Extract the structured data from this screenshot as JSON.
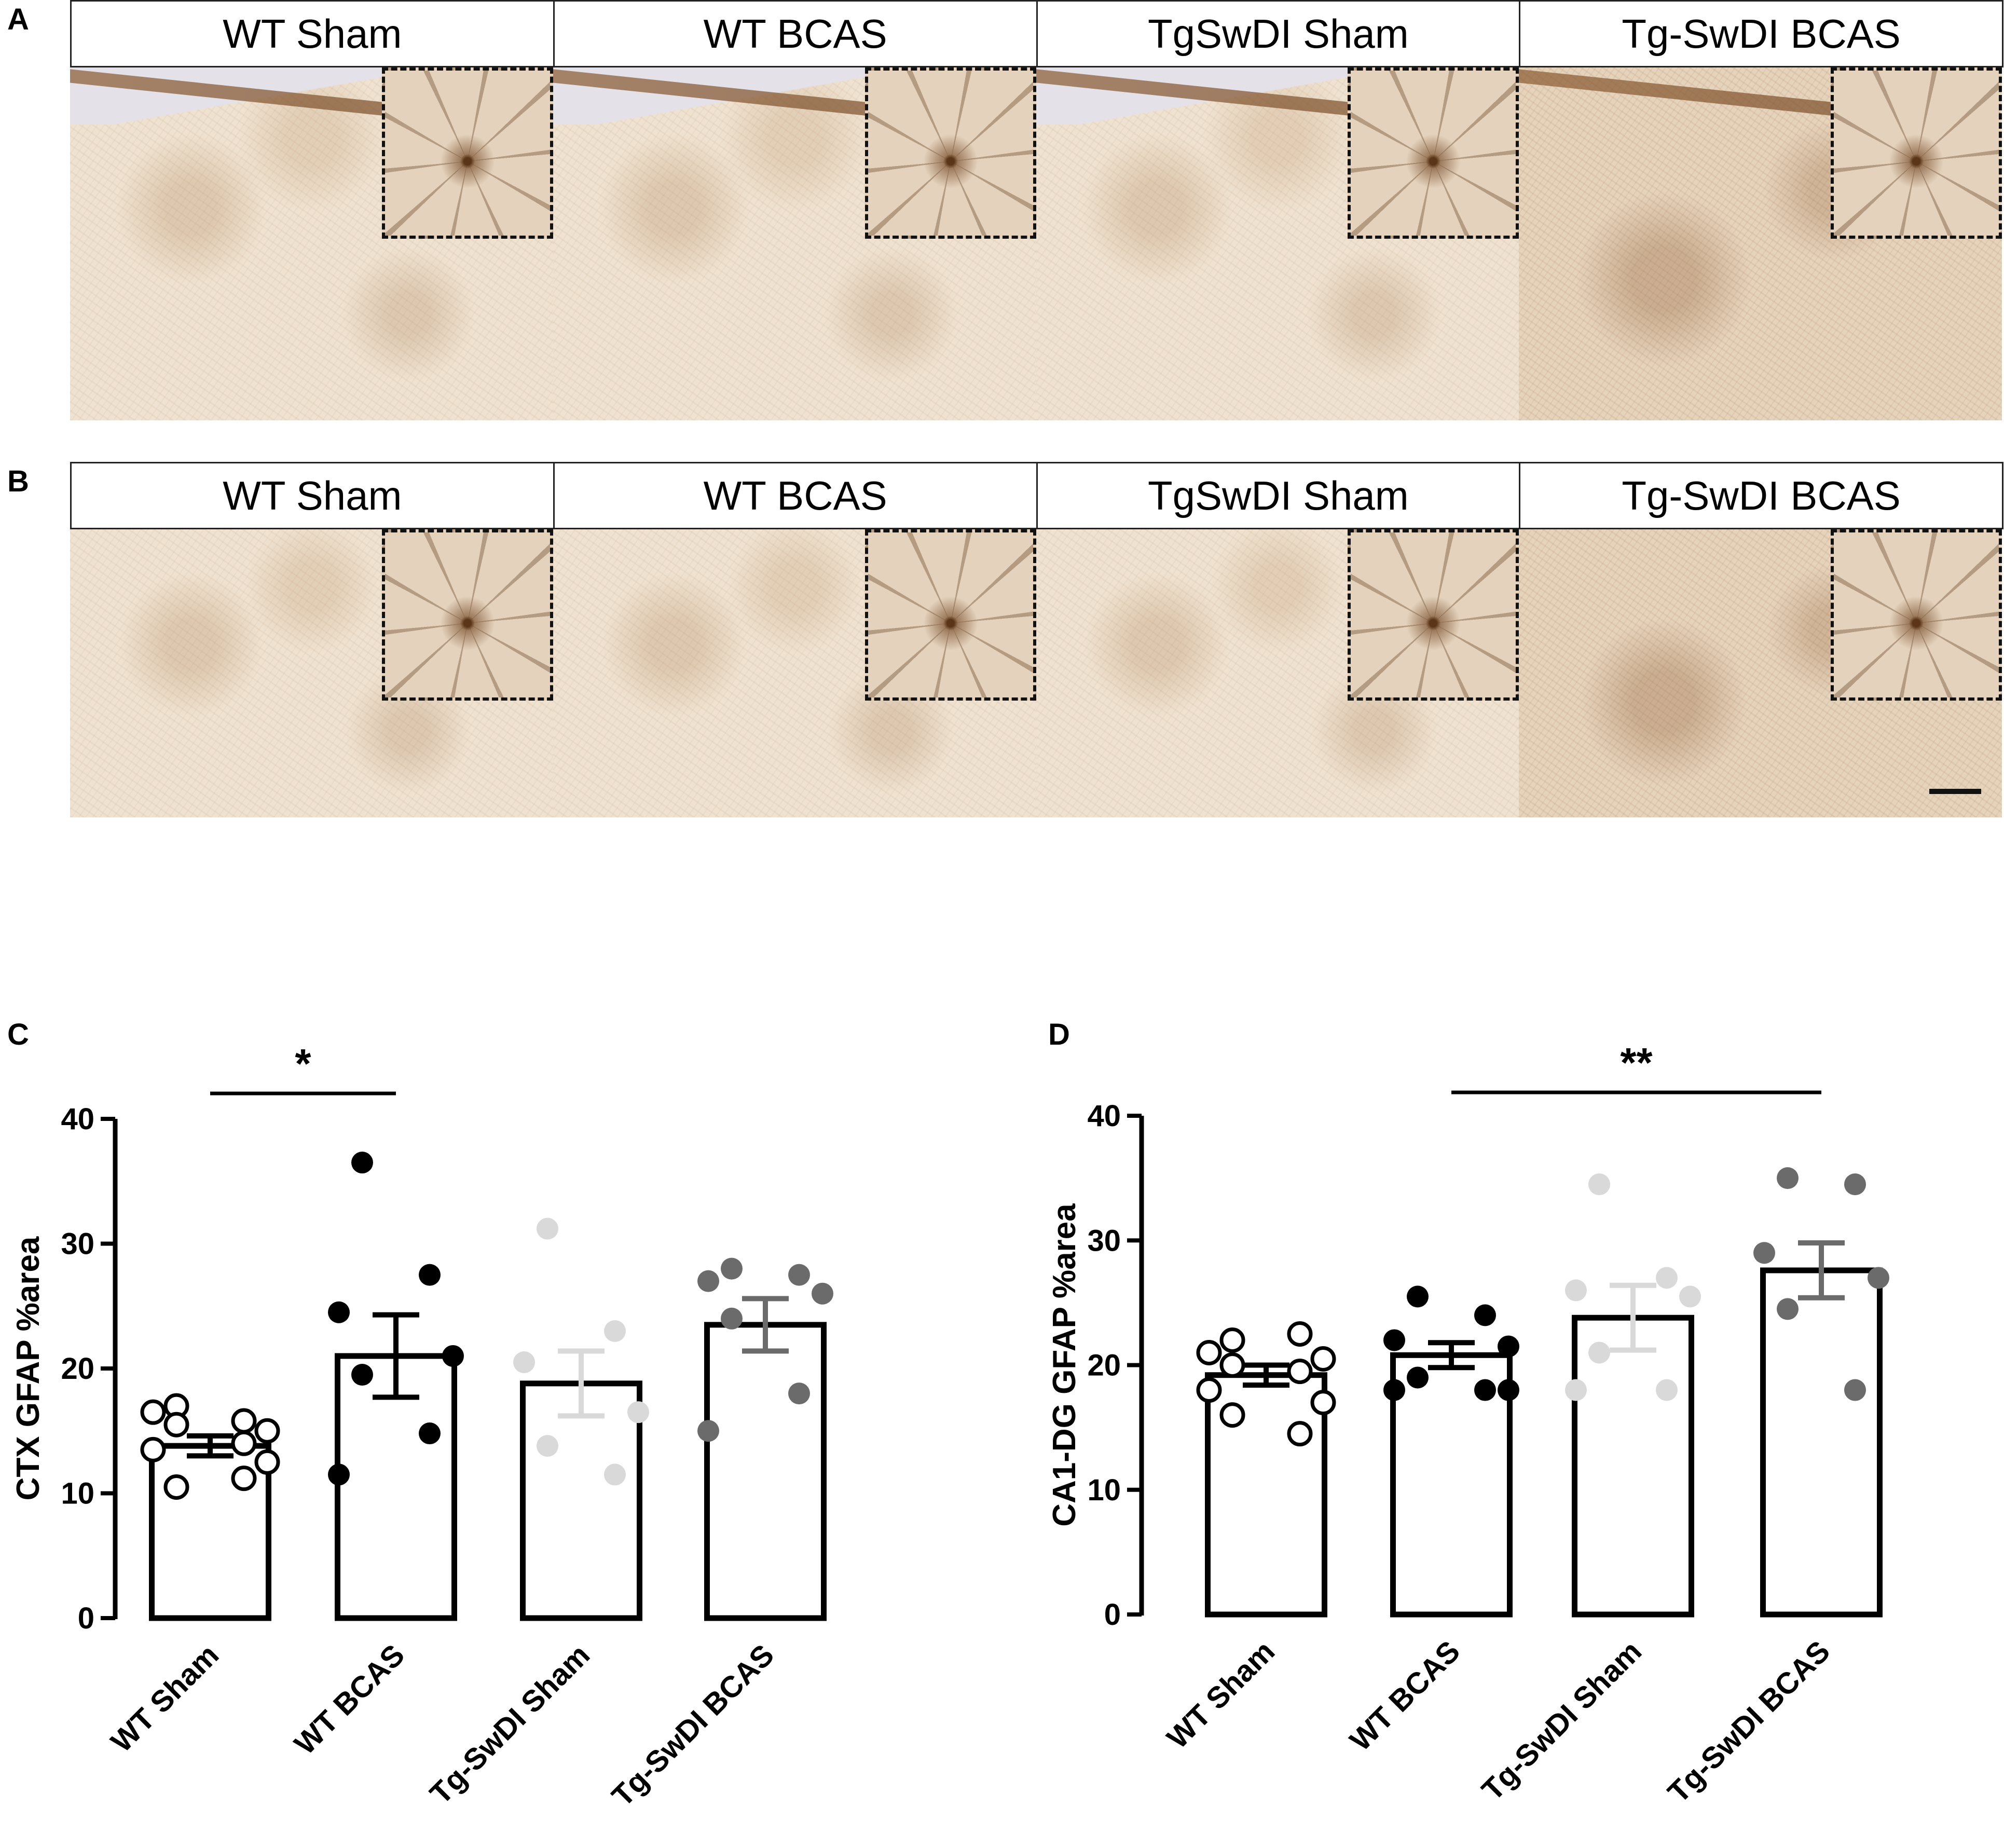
{
  "panels": {
    "A": "A",
    "B": "B",
    "C": "C",
    "D": "D"
  },
  "strip_labels": [
    "WT Sham",
    "WT BCAS",
    "TgSwDI Sham",
    "Tg-SwDI BCAS"
  ],
  "chart_data": [
    {
      "type": "bar",
      "panel": "C",
      "categories": [
        "WT Sham",
        "WT BCAS",
        "Tg-SwDI Sham",
        "Tg-SwDI BCAS"
      ],
      "ylabel": "CTX GFAP %area",
      "ylim": [
        0,
        40
      ],
      "yticks": [
        0,
        10,
        20,
        30,
        40
      ],
      "means": [
        13.8,
        21.0,
        18.8,
        23.5
      ],
      "sem": [
        0.8,
        3.3,
        2.6,
        2.1
      ],
      "points": [
        [
          17.0,
          15.8,
          16.5,
          15.0,
          15.5,
          14.0,
          13.5,
          12.5,
          10.5,
          11.2
        ],
        [
          36.5,
          27.5,
          24.5,
          21.0,
          19.5,
          14.8,
          11.5
        ],
        [
          31.2,
          23.0,
          20.5,
          16.5,
          13.8,
          11.5
        ],
        [
          28.0,
          27.5,
          27.0,
          26.0,
          24.0,
          18.0,
          15.0
        ]
      ],
      "point_styles": [
        "open",
        "black",
        "lightgray",
        "darkgray"
      ],
      "significance": [
        {
          "from": 0,
          "to": 1,
          "label": "*"
        }
      ]
    },
    {
      "type": "bar",
      "panel": "D",
      "categories": [
        "WT Sham",
        "WT BCAS",
        "Tg-SwDI Sham",
        "Tg-SwDI BCAS"
      ],
      "ylabel": "CA1-DG GFAP %area",
      "ylim": [
        0,
        40
      ],
      "yticks": [
        0,
        10,
        20,
        30,
        40
      ],
      "means": [
        19.2,
        20.8,
        23.8,
        27.6
      ],
      "sem": [
        0.8,
        1.0,
        2.6,
        2.2
      ],
      "points": [
        [
          22.0,
          22.5,
          21.0,
          20.5,
          20.0,
          19.5,
          18.0,
          17.0,
          16.0,
          14.5
        ],
        [
          25.5,
          24.0,
          22.0,
          21.5,
          19.0,
          18.0,
          18.0,
          18.0
        ],
        [
          34.5,
          27.0,
          26.0,
          25.5,
          21.0,
          18.0,
          18.0
        ],
        [
          35.0,
          34.5,
          29.0,
          27.0,
          24.5,
          18.0
        ]
      ],
      "point_styles": [
        "open",
        "black",
        "lightgray",
        "darkgray"
      ],
      "significance": [
        {
          "from": 1,
          "to": 3,
          "label": "**"
        }
      ]
    }
  ],
  "colors": {
    "open": "#000000",
    "black": "#000000",
    "lightgray": "#d9d9d9",
    "darkgray": "#6b6b6b",
    "dashed_box": "#111111"
  }
}
